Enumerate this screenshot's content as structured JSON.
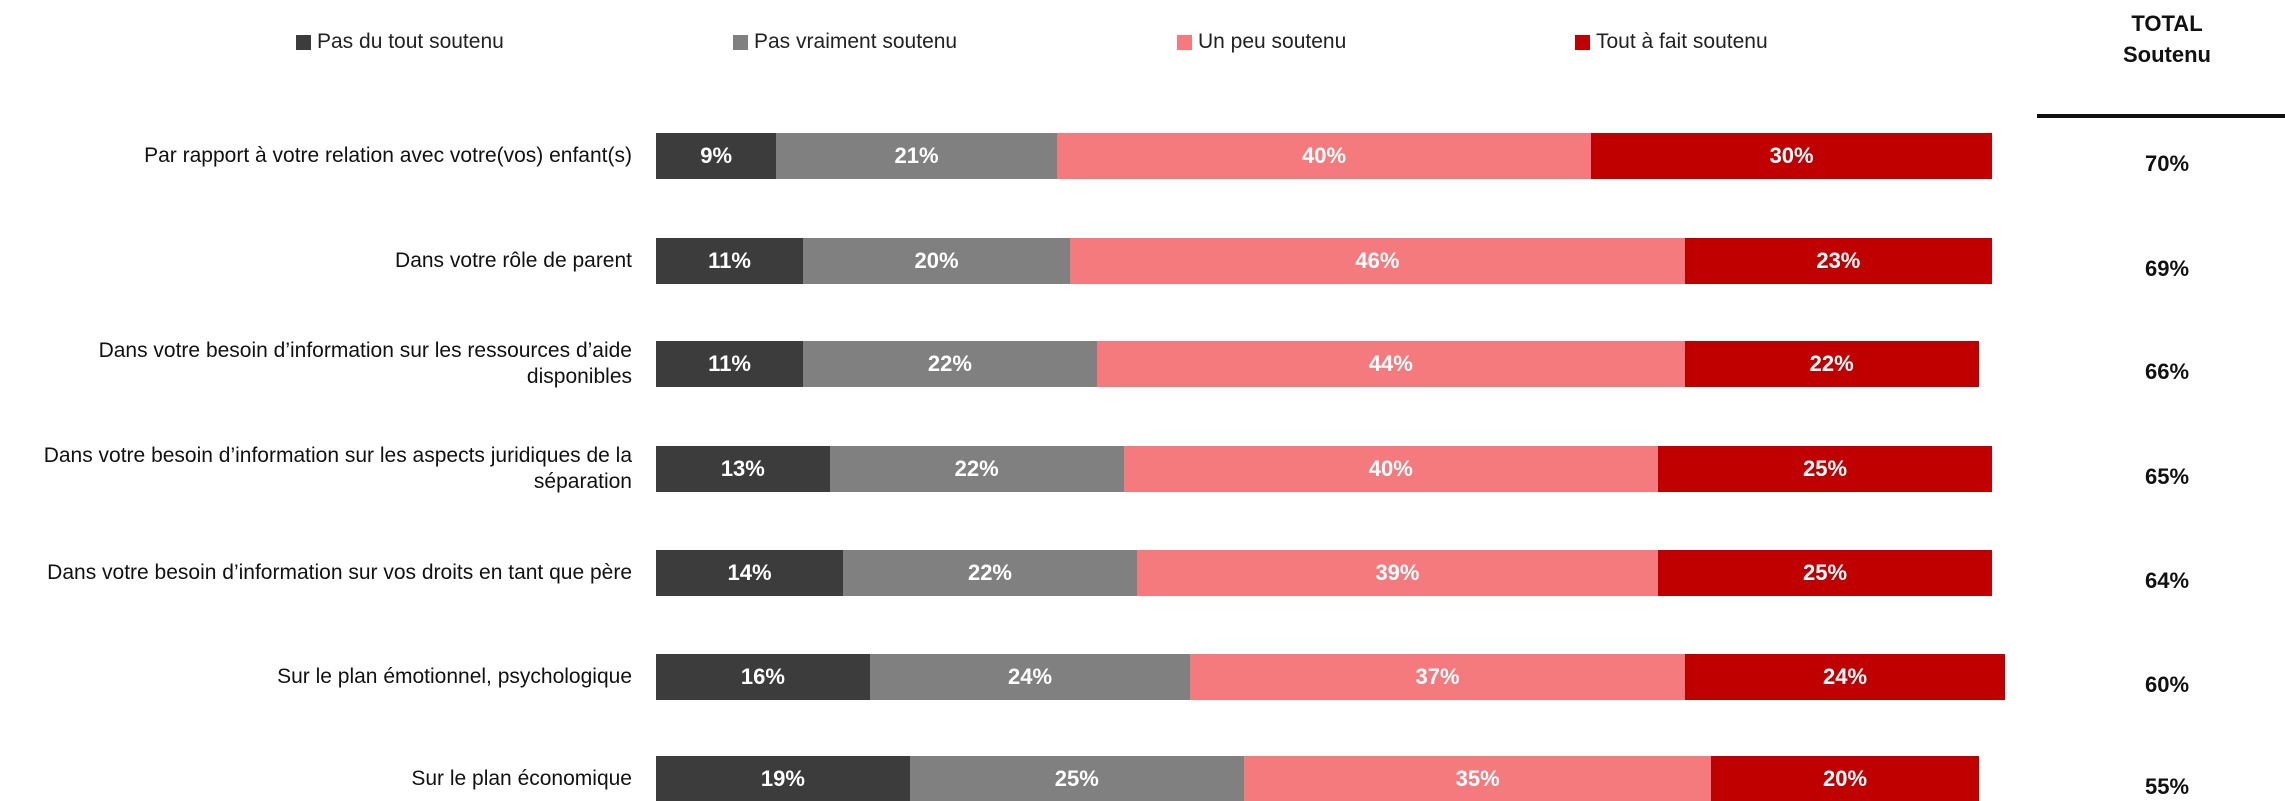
{
  "chart_data": {
    "type": "stacked-bar-horizontal",
    "categories": [
      "Par rapport à votre relation avec votre(vos) enfant(s)",
      "Dans votre rôle de parent",
      "Dans votre besoin d’information sur les ressources d’aide disponibles",
      "Dans votre besoin d’information sur les aspects juridiques de la séparation",
      "Dans votre besoin d’information sur vos droits en tant que père",
      "Sur le plan émotionnel, psychologique",
      "Sur le plan économique"
    ],
    "xlim": [
      0,
      100
    ],
    "series": [
      {
        "name": "Pas du tout soutenu",
        "color": "#3c3c3c",
        "values": [
          9,
          11,
          11,
          13,
          14,
          16,
          19
        ],
        "value_labels": [
          "9%",
          "11%",
          "11%",
          "13%",
          "14%",
          "16%",
          "19%"
        ]
      },
      {
        "name": "Pas vraiment soutenu",
        "color": "#808080",
        "values": [
          21,
          20,
          22,
          22,
          22,
          24,
          25
        ],
        "value_labels": [
          "21%",
          "20%",
          "22%",
          "22%",
          "22%",
          "24%",
          "25%"
        ]
      },
      {
        "name": "Un peu soutenu",
        "color": "#f47a7e",
        "values": [
          40,
          46,
          44,
          40,
          39,
          37,
          35
        ],
        "value_labels": [
          "40%",
          "46%",
          "44%",
          "40%",
          "39%",
          "37%",
          "35%"
        ]
      },
      {
        "name": "Tout à fait soutenu",
        "color": "#c00000",
        "values": [
          30,
          23,
          22,
          25,
          25,
          24,
          20
        ],
        "value_labels": [
          "30%",
          "23%",
          "22%",
          "25%",
          "25%",
          "24%",
          "20%"
        ]
      }
    ],
    "total": {
      "title": "TOTAL Soutenu",
      "values": [
        70,
        69,
        66,
        65,
        64,
        60,
        55
      ],
      "value_labels": [
        "70%",
        "69%",
        "66%",
        "65%",
        "64%",
        "60%",
        "55%"
      ]
    }
  }
}
